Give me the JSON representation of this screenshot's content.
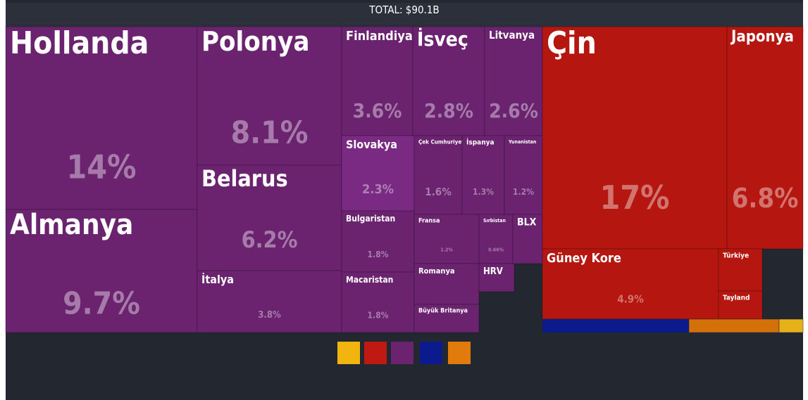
{
  "chart_data": {
    "type": "treemap",
    "title": "TOTAL: $90.1B",
    "groups": [
      {
        "color": "#6b2370",
        "items": [
          {
            "name": "Hollanda",
            "value": 14,
            "value_label": "14%"
          },
          {
            "name": "Almanya",
            "value": 9.7,
            "value_label": "9.7%"
          },
          {
            "name": "Polonya",
            "value": 8.1,
            "value_label": "8.1%"
          },
          {
            "name": "Belarus",
            "value": 6.2,
            "value_label": "6.2%"
          },
          {
            "name": "İtalya",
            "value": 3.8,
            "value_label": "3.8%"
          },
          {
            "name": "Finlandiya",
            "value": 3.6,
            "value_label": "3.6%"
          },
          {
            "name": "İsveç",
            "value": 2.8,
            "value_label": "2.8%"
          },
          {
            "name": "Litvanya",
            "value": 2.6,
            "value_label": "2.6%"
          },
          {
            "name": "Slovakya",
            "value": 2.3,
            "value_label": "2.3%"
          },
          {
            "name": "Bulgaristan",
            "value": 1.8,
            "value_label": "1.8%"
          },
          {
            "name": "Macaristan",
            "value": 1.8,
            "value_label": "1.8%"
          },
          {
            "name": "Çek Cumhuriyeti",
            "value": 1.6,
            "value_label": "1.6%"
          },
          {
            "name": "İspanya",
            "value": 1.3,
            "value_label": "1.3%"
          },
          {
            "name": "Yunanistan",
            "value": 1.2,
            "value_label": "1.2%"
          },
          {
            "name": "Fransa",
            "value": 1.2,
            "value_label": "1.2%"
          },
          {
            "name": "Sırbistan",
            "value": 0.66,
            "value_label": "0.66%"
          },
          {
            "name": "BLX",
            "value": 1.0
          },
          {
            "name": "Romanya",
            "value": 1.1
          },
          {
            "name": "Büyük Britanya",
            "value": 0.9
          },
          {
            "name": "HRV",
            "value": 0.5
          }
        ]
      },
      {
        "color": "#b5160f",
        "items": [
          {
            "name": "Çin",
            "value": 17,
            "value_label": "17%"
          },
          {
            "name": "Japonya",
            "value": 6.8,
            "value_label": "6.8%"
          },
          {
            "name": "Güney Kore",
            "value": 4.9,
            "value_label": "4.9%"
          },
          {
            "name": "Türkiye",
            "value": 0.8
          },
          {
            "name": "Tayland",
            "value": 0.7
          }
        ]
      }
    ]
  }
}
